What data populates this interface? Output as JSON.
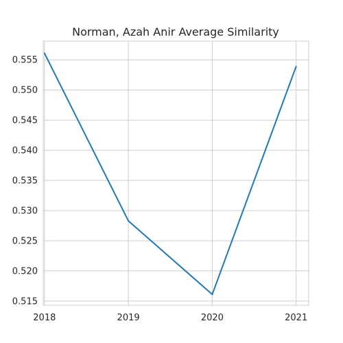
{
  "chart_data": {
    "type": "line",
    "title": "Norman, Azah Anir Average Similarity",
    "xlabel": "",
    "ylabel": "",
    "x": [
      2018,
      2019,
      2020,
      2021
    ],
    "x_tick_labels": [
      "2018",
      "2019",
      "2020",
      "2021"
    ],
    "series": [
      {
        "values": [
          0.5561,
          0.5283,
          0.5161,
          0.5539
        ],
        "color": "#1f77b4"
      }
    ],
    "xlim": [
      2017.985,
      2021.15
    ],
    "ylim": [
      0.5143,
      0.5581
    ],
    "y_ticks": [
      0.515,
      0.52,
      0.525,
      0.53,
      0.535,
      0.54,
      0.545,
      0.55,
      0.555
    ],
    "y_tick_labels": [
      "0.515",
      "0.520",
      "0.525",
      "0.530",
      "0.535",
      "0.540",
      "0.545",
      "0.550",
      "0.555"
    ],
    "grid": true,
    "style": "whitegrid"
  }
}
